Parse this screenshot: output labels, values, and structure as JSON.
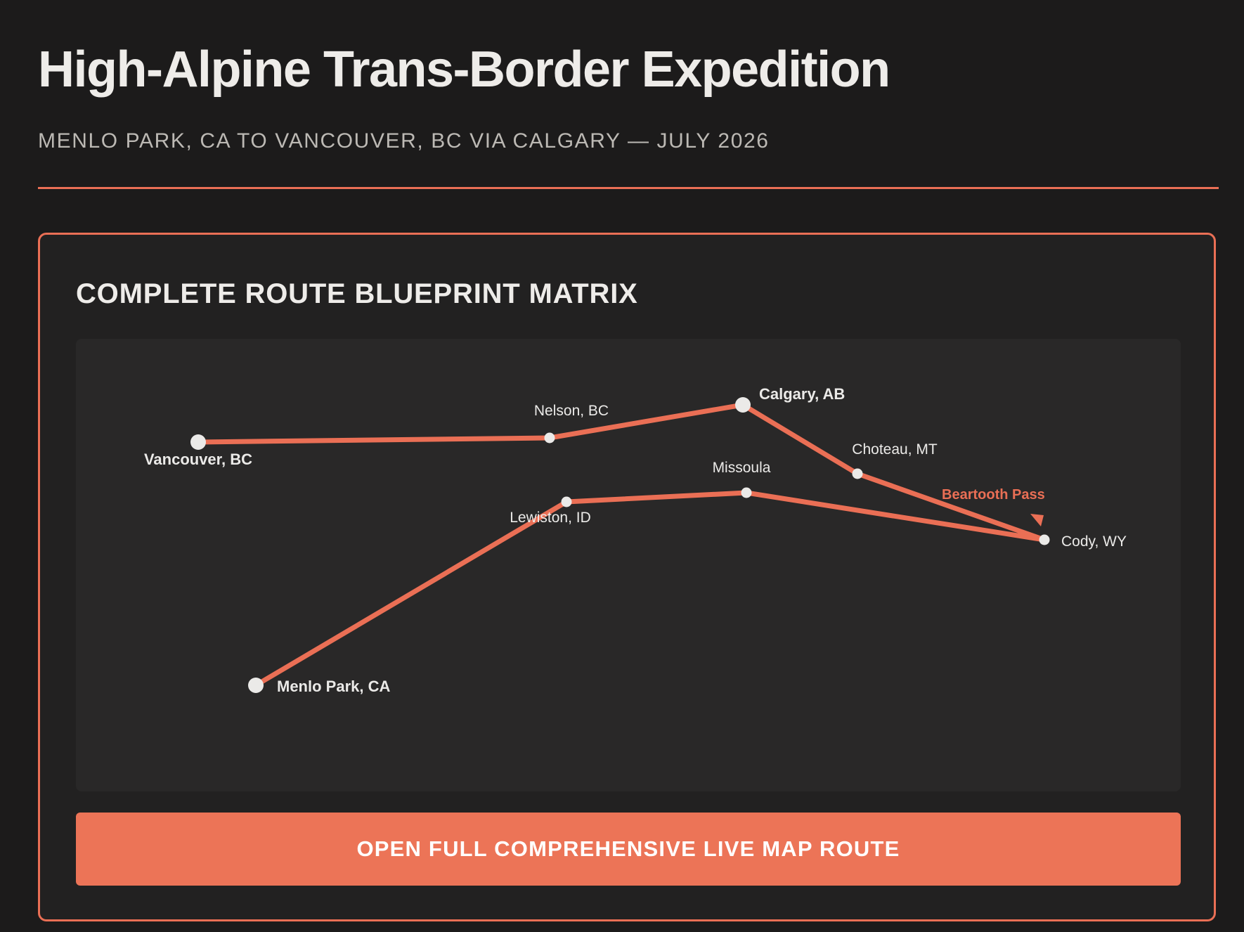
{
  "header": {
    "title": "High-Alpine Trans-Border Expedition",
    "subtitle": "MENLO PARK, CA TO VANCOUVER, BC VIA CALGARY — JULY 2026"
  },
  "card": {
    "title": "COMPLETE ROUTE BLUEPRINT MATRIX",
    "button_label": "OPEN FULL COMPREHENSIVE LIVE MAP ROUTE"
  },
  "route": {
    "stops": [
      {
        "name": "Menlo Park, CA",
        "major": true
      },
      {
        "name": "Lewiston, ID",
        "major": false
      },
      {
        "name": "Missoula",
        "major": false
      },
      {
        "name": "Cody, WY",
        "major": false
      },
      {
        "name": "Choteau, MT",
        "major": false
      },
      {
        "name": "Calgary, AB",
        "major": true
      },
      {
        "name": "Nelson, BC",
        "major": false
      },
      {
        "name": "Vancouver, BC",
        "major": true
      }
    ],
    "annotation": "Beartooth Pass"
  },
  "colors": {
    "accent": "#ea6f55",
    "background": "#1c1b1b",
    "card_background": "#222121",
    "map_background": "#292828",
    "node": "#ebeae8"
  }
}
